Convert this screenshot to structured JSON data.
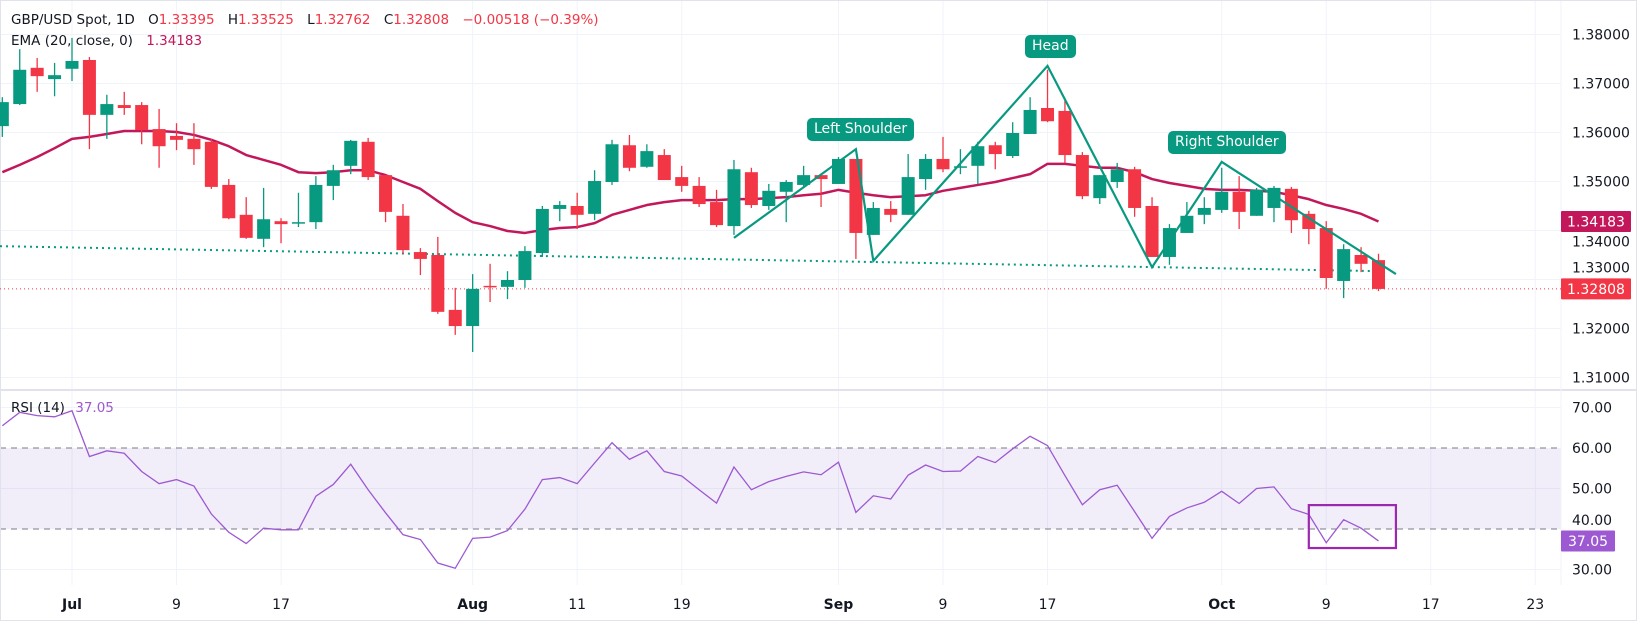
{
  "legend": {
    "symbol": "GBP/USD Spot, 1D",
    "o_label": "O",
    "open": "1.33395",
    "h_label": "H",
    "high": "1.33525",
    "l_label": "L",
    "low": "1.32762",
    "c_label": "C",
    "close": "1.32808",
    "change": "−0.00518 (−0.39%)",
    "ema_label": "EMA (20, close, 0)",
    "ema_value": "1.34183",
    "rsi_label": "RSI (14)",
    "rsi_value": "37.05"
  },
  "annotations": {
    "left_shoulder": "Left Shoulder",
    "head": "Head",
    "right_shoulder": "Right Shoulder"
  },
  "colors": {
    "up": "#089981",
    "down": "#f23645",
    "ema": "#c2185b",
    "rsi": "#9c59d1",
    "pattern": "#089981",
    "rsi_band": "#7e57c2",
    "highlight_box": "#9c27b0"
  },
  "chart_data": {
    "type": "candlestick",
    "price_axis": {
      "ylim": [
        1.305,
        1.385
      ],
      "ticks": [
        "1.38000",
        "1.37000",
        "1.36000",
        "1.35000",
        "1.34000",
        "1.33000",
        "1.32000",
        "1.31000"
      ]
    },
    "rsi_axis": {
      "ylim": [
        26,
        74
      ],
      "ticks": [
        "70.00",
        "60.00",
        "50.00",
        "40.00",
        "30.00"
      ],
      "band": [
        40,
        60
      ]
    },
    "x_ticks": [
      {
        "label": "Jul",
        "date": "07-01",
        "bold": true
      },
      {
        "label": "9",
        "date": "07-09"
      },
      {
        "label": "17",
        "date": "07-17"
      },
      {
        "label": "Aug",
        "date": "08-01",
        "bold": true
      },
      {
        "label": "11",
        "date": "08-11"
      },
      {
        "label": "19",
        "date": "08-19"
      },
      {
        "label": "Sep",
        "date": "09-01",
        "bold": true
      },
      {
        "label": "9",
        "date": "09-09"
      },
      {
        "label": "17",
        "date": "09-17"
      },
      {
        "label": "Oct",
        "date": "10-01",
        "bold": true
      },
      {
        "label": "9",
        "date": "10-09"
      },
      {
        "label": "17",
        "date": "10-17"
      },
      {
        "label": "23",
        "date": "10-23"
      }
    ],
    "grid": true,
    "last_price_badge": "1.32808",
    "ema_badge": "1.34183",
    "rsi_badge": "37.05",
    "candles": [
      [
        "06-25",
        1.3613,
        1.3672,
        1.3591,
        1.3662
      ],
      [
        "06-26",
        1.3658,
        1.377,
        1.3656,
        1.3728
      ],
      [
        "06-27",
        1.3732,
        1.3752,
        1.3683,
        1.3715
      ],
      [
        "06-30",
        1.3709,
        1.3742,
        1.3674,
        1.3717
      ],
      [
        "07-01",
        1.373,
        1.3793,
        1.3705,
        1.3746
      ],
      [
        "07-02",
        1.3748,
        1.3754,
        1.3566,
        1.3636
      ],
      [
        "07-03",
        1.3636,
        1.3677,
        1.3587,
        1.3658
      ],
      [
        "07-04",
        1.3656,
        1.3683,
        1.3636,
        1.365
      ],
      [
        "07-07",
        1.3656,
        1.3662,
        1.3576,
        1.3605
      ],
      [
        "07-08",
        1.3607,
        1.3648,
        1.3528,
        1.3572
      ],
      [
        "07-09",
        1.3593,
        1.3619,
        1.3564,
        1.3585
      ],
      [
        "07-10",
        1.3587,
        1.3619,
        1.3534,
        1.3566
      ],
      [
        "07-11",
        1.3581,
        1.3587,
        1.3485,
        1.3489
      ],
      [
        "07-14",
        1.3493,
        1.3505,
        1.3423,
        1.3425
      ],
      [
        "07-15",
        1.3432,
        1.3468,
        1.3383,
        1.3385
      ],
      [
        "07-16",
        1.3383,
        1.3487,
        1.3366,
        1.3423
      ],
      [
        "07-17",
        1.3419,
        1.3425,
        1.3374,
        1.3413
      ],
      [
        "07-18",
        1.3415,
        1.3477,
        1.3407,
        1.3417
      ],
      [
        "07-21",
        1.3417,
        1.3511,
        1.3403,
        1.3493
      ],
      [
        "07-22",
        1.3491,
        1.3534,
        1.3462,
        1.3523
      ],
      [
        "07-23",
        1.3532,
        1.3585,
        1.3515,
        1.3583
      ],
      [
        "07-24",
        1.3581,
        1.3589,
        1.3503,
        1.3509
      ],
      [
        "07-25",
        1.3513,
        1.3513,
        1.3417,
        1.3438
      ],
      [
        "07-28",
        1.343,
        1.3454,
        1.3352,
        1.336
      ],
      [
        "07-29",
        1.3356,
        1.3364,
        1.3309,
        1.3342
      ],
      [
        "07-30",
        1.335,
        1.3387,
        1.323,
        1.3234
      ],
      [
        "07-31",
        1.3238,
        1.3283,
        1.3187,
        1.3205
      ],
      [
        "08-01",
        1.3205,
        1.3311,
        1.3152,
        1.3281
      ],
      [
        "08-04",
        1.3287,
        1.3332,
        1.3254,
        1.3285
      ],
      [
        "08-05",
        1.3285,
        1.3317,
        1.326,
        1.3299
      ],
      [
        "08-06",
        1.3299,
        1.3368,
        1.3283,
        1.3358
      ],
      [
        "08-07",
        1.3354,
        1.345,
        1.3346,
        1.3444
      ],
      [
        "08-08",
        1.3444,
        1.346,
        1.3419,
        1.3452
      ],
      [
        "08-11",
        1.345,
        1.3477,
        1.3403,
        1.3432
      ],
      [
        "08-12",
        1.3434,
        1.3523,
        1.3421,
        1.3501
      ],
      [
        "08-13",
        1.3499,
        1.3585,
        1.3493,
        1.3576
      ],
      [
        "08-14",
        1.3574,
        1.3595,
        1.3521,
        1.3528
      ],
      [
        "08-15",
        1.353,
        1.3576,
        1.3528,
        1.3562
      ],
      [
        "08-18",
        1.3554,
        1.3566,
        1.3503,
        1.3503
      ],
      [
        "08-19",
        1.3509,
        1.3532,
        1.3479,
        1.3491
      ],
      [
        "08-20",
        1.3491,
        1.3509,
        1.3448,
        1.3454
      ],
      [
        "08-21",
        1.3458,
        1.3483,
        1.3407,
        1.3411
      ],
      [
        "08-22",
        1.3409,
        1.3544,
        1.3391,
        1.3525
      ],
      [
        "08-25",
        1.3519,
        1.3528,
        1.3446,
        1.3452
      ],
      [
        "08-26",
        1.345,
        1.3495,
        1.3442,
        1.3481
      ],
      [
        "08-27",
        1.3479,
        1.3503,
        1.3417,
        1.3499
      ],
      [
        "08-28",
        1.3493,
        1.3532,
        1.3489,
        1.3513
      ],
      [
        "08-29",
        1.3513,
        1.3513,
        1.3448,
        1.3505
      ],
      [
        "09-01",
        1.3495,
        1.355,
        1.3495,
        1.3546
      ],
      [
        "09-02",
        1.3546,
        1.3546,
        1.3342,
        1.3395
      ],
      [
        "09-03",
        1.3391,
        1.3458,
        1.3391,
        1.3446
      ],
      [
        "09-04",
        1.3444,
        1.346,
        1.3417,
        1.3432
      ],
      [
        "09-05",
        1.3432,
        1.3556,
        1.3432,
        1.3509
      ],
      [
        "09-08",
        1.3505,
        1.3556,
        1.3483,
        1.3546
      ],
      [
        "09-09",
        1.3546,
        1.3591,
        1.3519,
        1.3525
      ],
      [
        "09-10",
        1.3529,
        1.3566,
        1.3515,
        1.3531
      ],
      [
        "09-11",
        1.3532,
        1.3581,
        1.3495,
        1.3572
      ],
      [
        "09-12",
        1.3574,
        1.3581,
        1.3525,
        1.3556
      ],
      [
        "09-15",
        1.3552,
        1.3621,
        1.3548,
        1.3599
      ],
      [
        "09-16",
        1.3597,
        1.3672,
        1.3597,
        1.3646
      ],
      [
        "09-17",
        1.365,
        1.3728,
        1.3621,
        1.3623
      ],
      [
        "09-18",
        1.3644,
        1.3666,
        1.3538,
        1.3554
      ],
      [
        "09-19",
        1.3554,
        1.356,
        1.3464,
        1.347
      ],
      [
        "09-22",
        1.3466,
        1.3513,
        1.3454,
        1.3513
      ],
      [
        "09-23",
        1.3499,
        1.3538,
        1.3487,
        1.3525
      ],
      [
        "09-24",
        1.3525,
        1.353,
        1.3428,
        1.3446
      ],
      [
        "09-25",
        1.345,
        1.3468,
        1.3346,
        1.3346
      ],
      [
        "09-26",
        1.3346,
        1.3413,
        1.333,
        1.3405
      ],
      [
        "09-29",
        1.3395,
        1.3458,
        1.3395,
        1.343
      ],
      [
        "09-30",
        1.3432,
        1.3468,
        1.3413,
        1.3446
      ],
      [
        "10-01",
        1.3442,
        1.3528,
        1.3436,
        1.3479
      ],
      [
        "10-02",
        1.3479,
        1.3511,
        1.3403,
        1.3438
      ],
      [
        "10-03",
        1.343,
        1.3487,
        1.343,
        1.3483
      ],
      [
        "10-06",
        1.3446,
        1.3491,
        1.3417,
        1.3487
      ],
      [
        "10-07",
        1.3485,
        1.3489,
        1.3395,
        1.3421
      ],
      [
        "10-08",
        1.3434,
        1.344,
        1.3372,
        1.3403
      ],
      [
        "10-09",
        1.3405,
        1.3419,
        1.3281,
        1.3303
      ],
      [
        "10-10",
        1.3297,
        1.3372,
        1.3262,
        1.3362
      ],
      [
        "10-13",
        1.335,
        1.3366,
        1.3315,
        1.3332
      ],
      [
        "10-14",
        1.33395,
        1.33525,
        1.32762,
        1.32808
      ]
    ],
    "ema20": [
      1.3519,
      1.3534,
      1.355,
      1.3568,
      1.3587,
      1.3591,
      1.3597,
      1.3603,
      1.3603,
      1.3603,
      1.3601,
      1.3595,
      1.3585,
      1.3572,
      1.3554,
      1.3544,
      1.3534,
      1.3519,
      1.3517,
      1.3519,
      1.3523,
      1.3523,
      1.3513,
      1.3499,
      1.3485,
      1.346,
      1.3436,
      1.3417,
      1.3409,
      1.3399,
      1.3395,
      1.3401,
      1.3405,
      1.3407,
      1.3415,
      1.3432,
      1.3442,
      1.3452,
      1.3458,
      1.3462,
      1.3462,
      1.3462,
      1.3464,
      1.3464,
      1.3466,
      1.3468,
      1.3472,
      1.3475,
      1.3483,
      1.3477,
      1.3472,
      1.3468,
      1.347,
      1.3472,
      1.3481,
      1.3487,
      1.3493,
      1.3499,
      1.3507,
      1.3515,
      1.3536,
      1.3536,
      1.3532,
      1.3528,
      1.3528,
      1.3519,
      1.3505,
      1.3497,
      1.3491,
      1.3485,
      1.3483,
      1.3483,
      1.3481,
      1.3479,
      1.3472,
      1.3464,
      1.3452,
      1.3444,
      1.3434,
      1.34183
    ],
    "rsi14": [
      65.5,
      68.8,
      68.0,
      67.7,
      69.2,
      57.9,
      59.3,
      58.7,
      54.2,
      51.2,
      52.2,
      50.6,
      43.7,
      39.2,
      36.4,
      40.2,
      39.8,
      39.8,
      48.1,
      51.0,
      56.0,
      49.7,
      44.0,
      38.6,
      37.4,
      31.6,
      30.3,
      37.7,
      38.0,
      39.6,
      44.9,
      52.2,
      52.7,
      51.2,
      56.3,
      61.3,
      57.2,
      59.3,
      54.2,
      53.1,
      49.7,
      46.4,
      55.3,
      49.7,
      51.7,
      53.0,
      54.1,
      53.4,
      56.5,
      44.1,
      48.2,
      47.4,
      53.3,
      55.8,
      54.2,
      54.3,
      57.9,
      56.4,
      59.8,
      62.9,
      60.6,
      53.2,
      46.0,
      49.7,
      50.8,
      44.3,
      37.7,
      43.1,
      45.2,
      46.6,
      49.3,
      46.3,
      50.0,
      50.4,
      45.0,
      43.6,
      36.6,
      42.3,
      40.2,
      37.05
    ],
    "neckline": [
      [
        "06-25",
        1.3368
      ],
      [
        "10-14",
        1.3317
      ]
    ],
    "head_and_shoulders": [
      [
        "08-22",
        1.3385
      ],
      [
        "09-02",
        1.3566
      ],
      [
        "09-03",
        1.3338
      ],
      [
        "09-17",
        1.3736
      ],
      [
        "09-25",
        1.3325
      ],
      [
        "10-01",
        1.354
      ],
      [
        "10-15",
        1.3311
      ]
    ],
    "rsi_highlight": {
      "from": "10-08",
      "to": "10-15",
      "rsi_range": [
        35.3,
        45.9
      ]
    }
  }
}
